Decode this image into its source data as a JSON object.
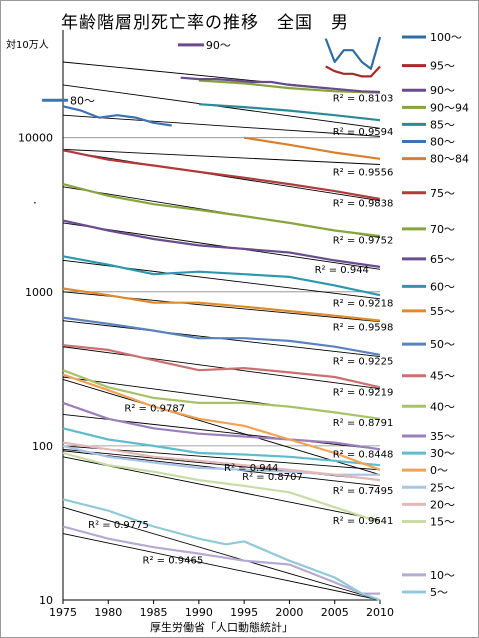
{
  "chart_data": {
    "type": "line",
    "title": "年齢階層別死亡率の推移　全国　男",
    "ylabel": "対10万人",
    "xlabel": "厚生労働省「人口動態統計」",
    "stray_mark": "·",
    "yscale": "log",
    "ylim": [
      10,
      50000
    ],
    "xlim": [
      1975,
      2010
    ],
    "xticks": [
      1975,
      1980,
      1985,
      1990,
      1995,
      2000,
      2005,
      2010
    ],
    "yticks": [
      10,
      100,
      1000,
      10000
    ],
    "ytick_labels": [
      "10",
      "100",
      "1000",
      "10000"
    ],
    "grid": "horizontal at decades",
    "series": [
      {
        "name": "100～",
        "color": "#2E6DA4",
        "x": [
          2004,
          2005,
          2006,
          2007,
          2008,
          2009,
          2010
        ],
        "y": [
          44000,
          31000,
          37000,
          37000,
          31000,
          28000,
          45000
        ]
      },
      {
        "name": "95～",
        "color": "#A62A2A",
        "x": [
          2004,
          2005,
          2006,
          2007,
          2008,
          2009,
          2010
        ],
        "y": [
          29000,
          27000,
          26000,
          26000,
          25000,
          25000,
          29000
        ]
      },
      {
        "name": "90～94",
        "color": "#86A33C",
        "x": [
          1990,
          1995,
          2000,
          2005,
          2010
        ],
        "y": [
          23500,
          22500,
          21000,
          20000,
          19600
        ]
      },
      {
        "name": "90～",
        "color": "#6A4A8C",
        "x": [
          1988,
          1990,
          1992,
          1994,
          1996,
          1998,
          2000,
          2002,
          2004,
          2006,
          2008,
          2010
        ],
        "y": [
          24500,
          24000,
          24000,
          23500,
          23000,
          23000,
          22000,
          21500,
          21000,
          20500,
          20000,
          19800
        ]
      },
      {
        "name": "85～",
        "color": "#2A8A9A",
        "x": [
          1990,
          1995,
          2000,
          2005,
          2010
        ],
        "y": [
          16500,
          15800,
          15000,
          14000,
          13000
        ]
      },
      {
        "name": "80～84",
        "color": "#D8802C",
        "x": [
          1995,
          2000,
          2005,
          2010
        ],
        "y": [
          10000,
          9000,
          8000,
          7300
        ]
      },
      {
        "name": "80～",
        "color": "#3F71B5",
        "x": [
          1975,
          1977,
          1979,
          1981,
          1983,
          1985,
          1987
        ],
        "y": [
          16000,
          15000,
          13500,
          14000,
          13500,
          12500,
          12000
        ]
      },
      {
        "name": "75～",
        "color": "#B13B3B",
        "x": [
          1975,
          1980,
          1985,
          1990,
          1995,
          2000,
          2005,
          2010
        ],
        "y": [
          8300,
          7200,
          6600,
          6000,
          5500,
          5000,
          4500,
          4000
        ]
      },
      {
        "name": "70～",
        "color": "#88A43E",
        "x": [
          1975,
          1980,
          1985,
          1990,
          1995,
          2000,
          2005,
          2010
        ],
        "y": [
          5000,
          4200,
          3700,
          3400,
          3100,
          2800,
          2500,
          2300
        ]
      },
      {
        "name": "65～",
        "color": "#6B4C8E",
        "x": [
          1975,
          1980,
          1985,
          1990,
          1995,
          2000,
          2005,
          2010
        ],
        "y": [
          2900,
          2500,
          2200,
          2000,
          1900,
          1800,
          1600,
          1450
        ]
      },
      {
        "name": "60～",
        "color": "#2C98AE",
        "x": [
          1975,
          1980,
          1985,
          1990,
          1995,
          2000,
          2005,
          2010
        ],
        "y": [
          1700,
          1500,
          1300,
          1350,
          1300,
          1250,
          1100,
          950
        ]
      },
      {
        "name": "55～",
        "color": "#E08A2E",
        "x": [
          1975,
          1980,
          1985,
          1990,
          1995,
          2000,
          2005,
          2010
        ],
        "y": [
          1050,
          950,
          850,
          850,
          800,
          750,
          700,
          650
        ]
      },
      {
        "name": "50～",
        "color": "#5B82C0",
        "x": [
          1975,
          1980,
          1985,
          1990,
          1995,
          2000,
          2005,
          2010
        ],
        "y": [
          680,
          620,
          560,
          500,
          500,
          480,
          440,
          390
        ]
      },
      {
        "name": "45～",
        "color": "#CC6F6F",
        "x": [
          1975,
          1980,
          1985,
          1990,
          1995,
          2000,
          2005,
          2010
        ],
        "y": [
          450,
          420,
          360,
          310,
          320,
          300,
          280,
          240
        ]
      },
      {
        "name": "40～",
        "color": "#A8C26A",
        "x": [
          1975,
          1980,
          1985,
          1990,
          1995,
          2000,
          2005,
          2010
        ],
        "y": [
          310,
          240,
          205,
          190,
          190,
          180,
          165,
          150
        ]
      },
      {
        "name": "35～",
        "color": "#9B7FBD",
        "x": [
          1975,
          1980,
          1985,
          1990,
          1995,
          2000,
          2005,
          2010
        ],
        "y": [
          190,
          150,
          130,
          120,
          115,
          110,
          105,
          95
        ]
      },
      {
        "name": "30～",
        "color": "#5FBCCC",
        "x": [
          1975,
          1980,
          1985,
          1990,
          1995,
          2000,
          2005,
          2010
        ],
        "y": [
          130,
          110,
          100,
          90,
          88,
          85,
          80,
          75
        ]
      },
      {
        "name": "0～",
        "color": "#F2A255",
        "x": [
          1975,
          1980,
          1985,
          1990,
          1995,
          2000,
          2005,
          2010
        ],
        "y": [
          290,
          230,
          180,
          150,
          135,
          110,
          90,
          70
        ]
      },
      {
        "name": "25～",
        "color": "#A9C4E5",
        "x": [
          1975,
          1980,
          1985,
          1990,
          1995,
          2000,
          2005,
          2010
        ],
        "y": [
          100,
          85,
          78,
          72,
          70,
          68,
          65,
          65
        ]
      },
      {
        "name": "20～",
        "color": "#E5B8B8",
        "x": [
          1975,
          1980,
          1985,
          1990,
          1995,
          2000,
          2005,
          2010
        ],
        "y": [
          105,
          95,
          85,
          80,
          75,
          70,
          65,
          60
        ]
      },
      {
        "name": "15～",
        "color": "#C9DCA6",
        "x": [
          1975,
          1980,
          1985,
          1990,
          1995,
          2000,
          2005,
          2010
        ],
        "y": [
          90,
          75,
          68,
          60,
          55,
          50,
          40,
          32
        ]
      },
      {
        "name": "10～",
        "color": "#B8A9D3",
        "x": [
          1975,
          1980,
          1985,
          1990,
          1995,
          2000,
          2005,
          2008,
          2010
        ],
        "y": [
          30,
          25,
          22,
          20,
          18,
          17,
          13,
          11,
          11
        ]
      },
      {
        "name": "5～",
        "color": "#90C9D8",
        "x": [
          1975,
          1980,
          1985,
          1990,
          1993,
          1995,
          2000,
          2005,
          2008,
          2010
        ],
        "y": [
          45,
          38,
          30,
          25,
          23,
          24,
          18,
          14,
          11,
          10
        ]
      }
    ],
    "trendlines": [
      {
        "label": "R² = 0.8103",
        "x": [
          1975,
          2010
        ],
        "y": [
          31000,
          19500
        ]
      },
      {
        "label": "R² = 0.9594",
        "x": [
          1975,
          2010
        ],
        "y": [
          22000,
          11500
        ]
      },
      {
        "label": "",
        "x": [
          1975,
          2010
        ],
        "y": [
          14000,
          10200
        ]
      },
      {
        "label": "R² = 0.9556",
        "x": [
          1975,
          2010
        ],
        "y": [
          8400,
          6700
        ]
      },
      {
        "label": "R² = 0.9838",
        "x": [
          1975,
          2010
        ],
        "y": [
          8200,
          3900
        ]
      },
      {
        "label": "R² = 0.9752",
        "x": [
          1975,
          2010
        ],
        "y": [
          4800,
          2250
        ]
      },
      {
        "label": "R² = 0.944",
        "x": [
          1975,
          2010
        ],
        "y": [
          2800,
          1400
        ]
      },
      {
        "label": "R² = 0.9218",
        "x": [
          1975,
          2010
        ],
        "y": [
          1600,
          900
        ]
      },
      {
        "label": "R² = 0.9598",
        "x": [
          1975,
          2010
        ],
        "y": [
          1000,
          640
        ]
      },
      {
        "label": "R² = 0.9225",
        "x": [
          1975,
          2010
        ],
        "y": [
          650,
          380
        ]
      },
      {
        "label": "R² = 0.9219",
        "x": [
          1975,
          2010
        ],
        "y": [
          440,
          235
        ]
      },
      {
        "label": "R² = 0.8791",
        "x": [
          1975,
          2010
        ],
        "y": [
          280,
          150
        ]
      },
      {
        "label": "R² = 0.9787",
        "x": [
          1975,
          2010
        ],
        "y": [
          270,
          65
        ]
      },
      {
        "label": "R² = 0.8448",
        "x": [
          1975,
          2010
        ],
        "y": [
          160,
          95
        ]
      },
      {
        "label": "R² = 0.944",
        "x": [
          1975,
          2010
        ],
        "y": [
          100,
          70
        ]
      },
      {
        "label": "R² = 0.8707",
        "x": [
          1975,
          2010
        ],
        "y": [
          95,
          60
        ]
      },
      {
        "label": "R² = 0.7495",
        "x": [
          1975,
          2010
        ],
        "y": [
          93,
          55
        ]
      },
      {
        "label": "R² = 0.9641",
        "x": [
          1975,
          2010
        ],
        "y": [
          85,
          33
        ]
      },
      {
        "label": "R² = 0.9775",
        "x": [
          1975,
          2010
        ],
        "y": [
          40,
          10
        ]
      },
      {
        "label": "R² = 0.9465",
        "x": [
          1975,
          2010
        ],
        "y": [
          27,
          10
        ]
      }
    ],
    "inline_labels": [
      {
        "text": "90～",
        "series": "90～"
      },
      {
        "text": "80～",
        "series": "80～"
      }
    ]
  }
}
